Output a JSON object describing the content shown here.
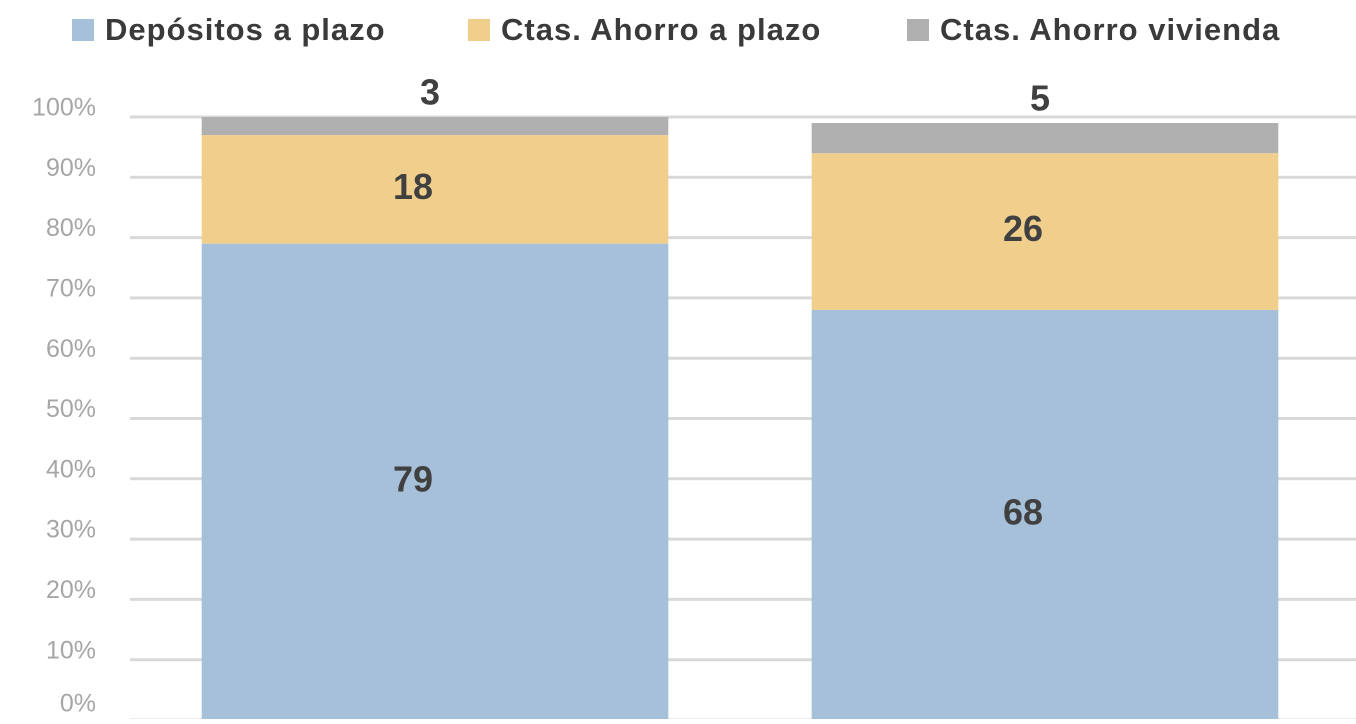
{
  "chart_data": {
    "type": "stacked_bar",
    "categories": [
      null,
      null
    ],
    "series": [
      {
        "name": "Depósitos a plazo",
        "color": "#a5c0d8",
        "values": [
          79,
          68
        ]
      },
      {
        "name": "Ctas. Ahorro a plazo",
        "color": "#f0cf8d",
        "values": [
          18,
          26
        ]
      },
      {
        "name": "Ctas. Ahorro vivienda",
        "color": "#b0b0b0",
        "values": [
          3,
          5
        ]
      }
    ],
    "ylim": [
      0,
      100
    ],
    "yticks": [
      {
        "value": 0,
        "label": "0%"
      },
      {
        "value": 10,
        "label": "10%"
      },
      {
        "value": 20,
        "label": "20%"
      },
      {
        "value": 30,
        "label": "30%"
      },
      {
        "value": 40,
        "label": "40%"
      },
      {
        "value": 50,
        "label": "50%"
      },
      {
        "value": 60,
        "label": "60%"
      },
      {
        "value": 70,
        "label": "70%"
      },
      {
        "value": 80,
        "label": "80%"
      },
      {
        "value": 90,
        "label": "90%"
      },
      {
        "value": 100,
        "label": "100%"
      }
    ],
    "grid": true,
    "legend": "top"
  }
}
